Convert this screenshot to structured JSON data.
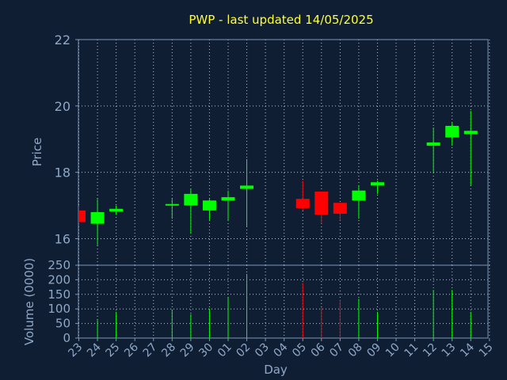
{
  "chart_data": {
    "type": "candlestick",
    "title": "PWP - last updated 14/05/2025",
    "xlabel": "Day",
    "price_ylabel": "Price",
    "volume_ylabel": "Volume (0000)",
    "x_ticks": [
      "23",
      "24",
      "25",
      "26",
      "27",
      "28",
      "29",
      "30",
      "01",
      "02",
      "03",
      "04",
      "05",
      "06",
      "07",
      "08",
      "09",
      "10",
      "11",
      "12",
      "13",
      "14",
      "15"
    ],
    "price_ylim": [
      15.2,
      22
    ],
    "price_ticks": [
      "16",
      "18",
      "20",
      "22"
    ],
    "volume_ylim": [
      0,
      250
    ],
    "volume_ticks": [
      "0",
      "50",
      "100",
      "150",
      "200",
      "250"
    ],
    "up_color": "#00ff00",
    "down_color": "#ff0000",
    "candles": [
      {
        "i": 0,
        "open": 16.85,
        "high": 16.95,
        "low": 16.45,
        "close": 16.5,
        "volume": 0
      },
      {
        "i": 1,
        "open": 16.45,
        "high": 17.2,
        "low": 15.8,
        "close": 16.8,
        "volume": 62
      },
      {
        "i": 2,
        "open": 16.82,
        "high": 17.0,
        "low": 16.72,
        "close": 16.9,
        "volume": 90
      },
      {
        "i": 5,
        "open": 17.02,
        "high": 17.2,
        "low": 16.6,
        "close": 17.02,
        "volume": 98
      },
      {
        "i": 6,
        "open": 17.0,
        "high": 17.5,
        "low": 16.15,
        "close": 17.35,
        "volume": 82
      },
      {
        "i": 7,
        "open": 16.85,
        "high": 17.2,
        "low": 16.55,
        "close": 17.15,
        "volume": 100
      },
      {
        "i": 8,
        "open": 17.15,
        "high": 17.45,
        "low": 16.55,
        "close": 17.25,
        "volume": 140
      },
      {
        "i": 9,
        "open": 17.5,
        "high": 18.4,
        "low": 16.35,
        "close": 17.6,
        "volume": 220
      },
      {
        "i": 12,
        "open": 17.2,
        "high": 17.75,
        "low": 16.85,
        "close": 16.92,
        "volume": 190
      },
      {
        "i": 13,
        "open": 17.42,
        "high": 17.42,
        "low": 16.45,
        "close": 16.72,
        "volume": 105
      },
      {
        "i": 14,
        "open": 17.08,
        "high": 17.08,
        "low": 16.55,
        "close": 16.75,
        "volume": 130
      },
      {
        "i": 15,
        "open": 17.15,
        "high": 17.6,
        "low": 16.6,
        "close": 17.45,
        "volume": 135
      },
      {
        "i": 16,
        "open": 17.6,
        "high": 17.75,
        "low": 17.35,
        "close": 17.7,
        "volume": 90
      },
      {
        "i": 19,
        "open": 18.8,
        "high": 19.35,
        "low": 18.0,
        "close": 18.9,
        "volume": 165
      },
      {
        "i": 20,
        "open": 19.05,
        "high": 19.5,
        "low": 18.8,
        "close": 19.4,
        "volume": 165
      },
      {
        "i": 21,
        "open": 19.15,
        "high": 19.85,
        "low": 17.6,
        "close": 19.25,
        "volume": 90
      }
    ]
  }
}
